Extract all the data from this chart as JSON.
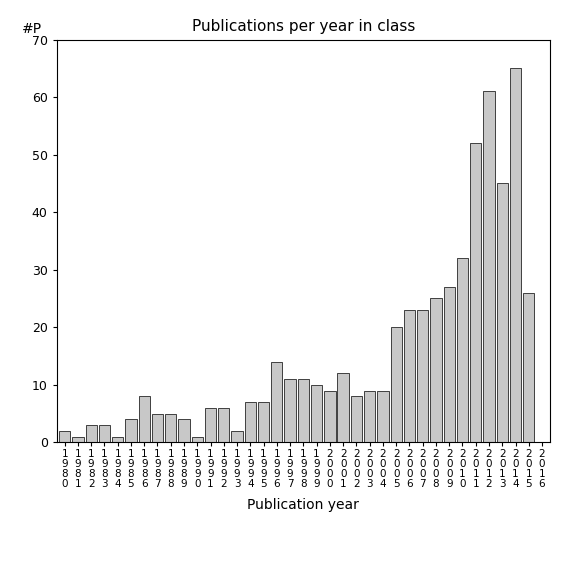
{
  "title": "Publications per year in class",
  "xlabel": "Publication year",
  "ylabel": "#P",
  "bar_color": "#c8c8c8",
  "bar_edge_color": "#000000",
  "bar_linewidth": 0.5,
  "ylim": [
    0,
    70
  ],
  "yticks": [
    0,
    10,
    20,
    30,
    40,
    50,
    60,
    70
  ],
  "background_color": "#ffffff",
  "years": [
    1980,
    1981,
    1982,
    1983,
    1984,
    1985,
    1986,
    1987,
    1988,
    1989,
    1990,
    1991,
    1992,
    1993,
    1994,
    1995,
    1996,
    1997,
    1998,
    1999,
    2000,
    2001,
    2002,
    2003,
    2004,
    2005,
    2006,
    2007,
    2008,
    2009,
    2010,
    2011,
    2012,
    2013,
    2014,
    2015,
    2016
  ],
  "values": [
    2,
    1,
    3,
    3,
    1,
    4,
    8,
    5,
    5,
    4,
    1,
    6,
    6,
    2,
    7,
    7,
    14,
    11,
    11,
    10,
    9,
    12,
    8,
    9,
    9,
    20,
    23,
    23,
    25,
    27,
    32,
    52,
    61,
    45,
    65,
    26,
    0
  ],
  "figsize": [
    5.67,
    5.67
  ],
  "dpi": 100
}
